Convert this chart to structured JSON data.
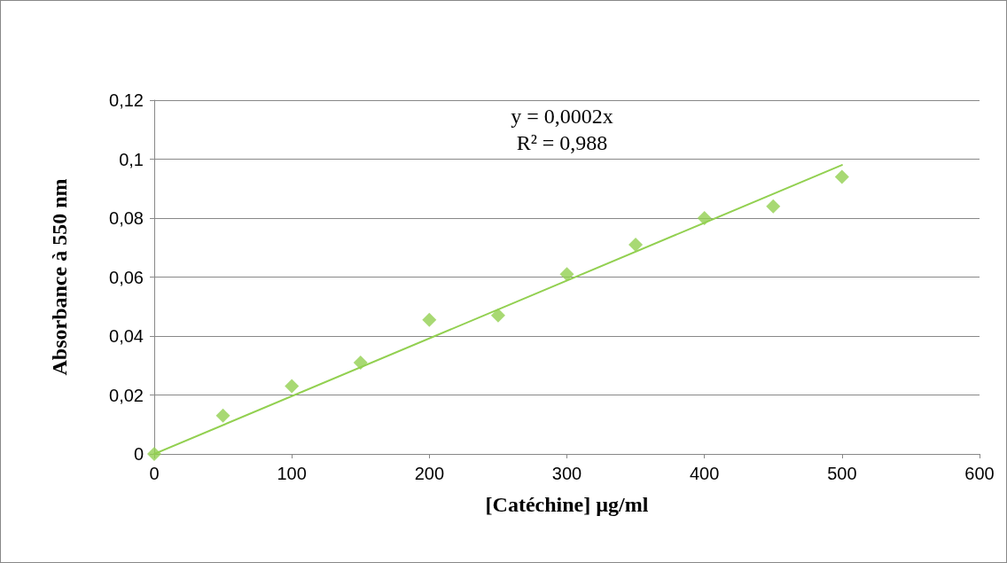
{
  "chart_data": {
    "type": "scatter",
    "xlabel": "[Catéchine] µg/ml",
    "ylabel": "Absorbance à 550 nm",
    "x": [
      0,
      50,
      100,
      150,
      200,
      250,
      300,
      350,
      400,
      450,
      500
    ],
    "series": [
      {
        "color": "#92d050",
        "marker": "diamond",
        "values": [
          0,
          0.013,
          0.023,
          0.031,
          0.0455,
          0.047,
          0.061,
          0.071,
          0.08,
          0.084,
          0.094
        ]
      },
      {
        "type": "line",
        "color": "#92d050",
        "marker": "none",
        "x": [
          0,
          500
        ],
        "values": [
          0,
          0.098
        ]
      }
    ],
    "xlim": [
      0,
      600
    ],
    "xticks": [
      0,
      100,
      200,
      300,
      400,
      500,
      600
    ],
    "ylim": [
      0,
      0.12
    ],
    "yticks": [
      0,
      {
        "value": 0.02,
        "label": "0,02"
      },
      {
        "value": 0.04,
        "label": "0,04"
      },
      {
        "value": 0.06,
        "label": "0,06"
      },
      {
        "value": 0.08,
        "label": "0,08"
      },
      {
        "value": 0.1,
        "label": "0,1"
      },
      {
        "value": 0.12,
        "label": "0,12"
      }
    ],
    "grid": "y",
    "annotations": [
      "y = 0,0002x",
      "R² = 0,988"
    ]
  }
}
